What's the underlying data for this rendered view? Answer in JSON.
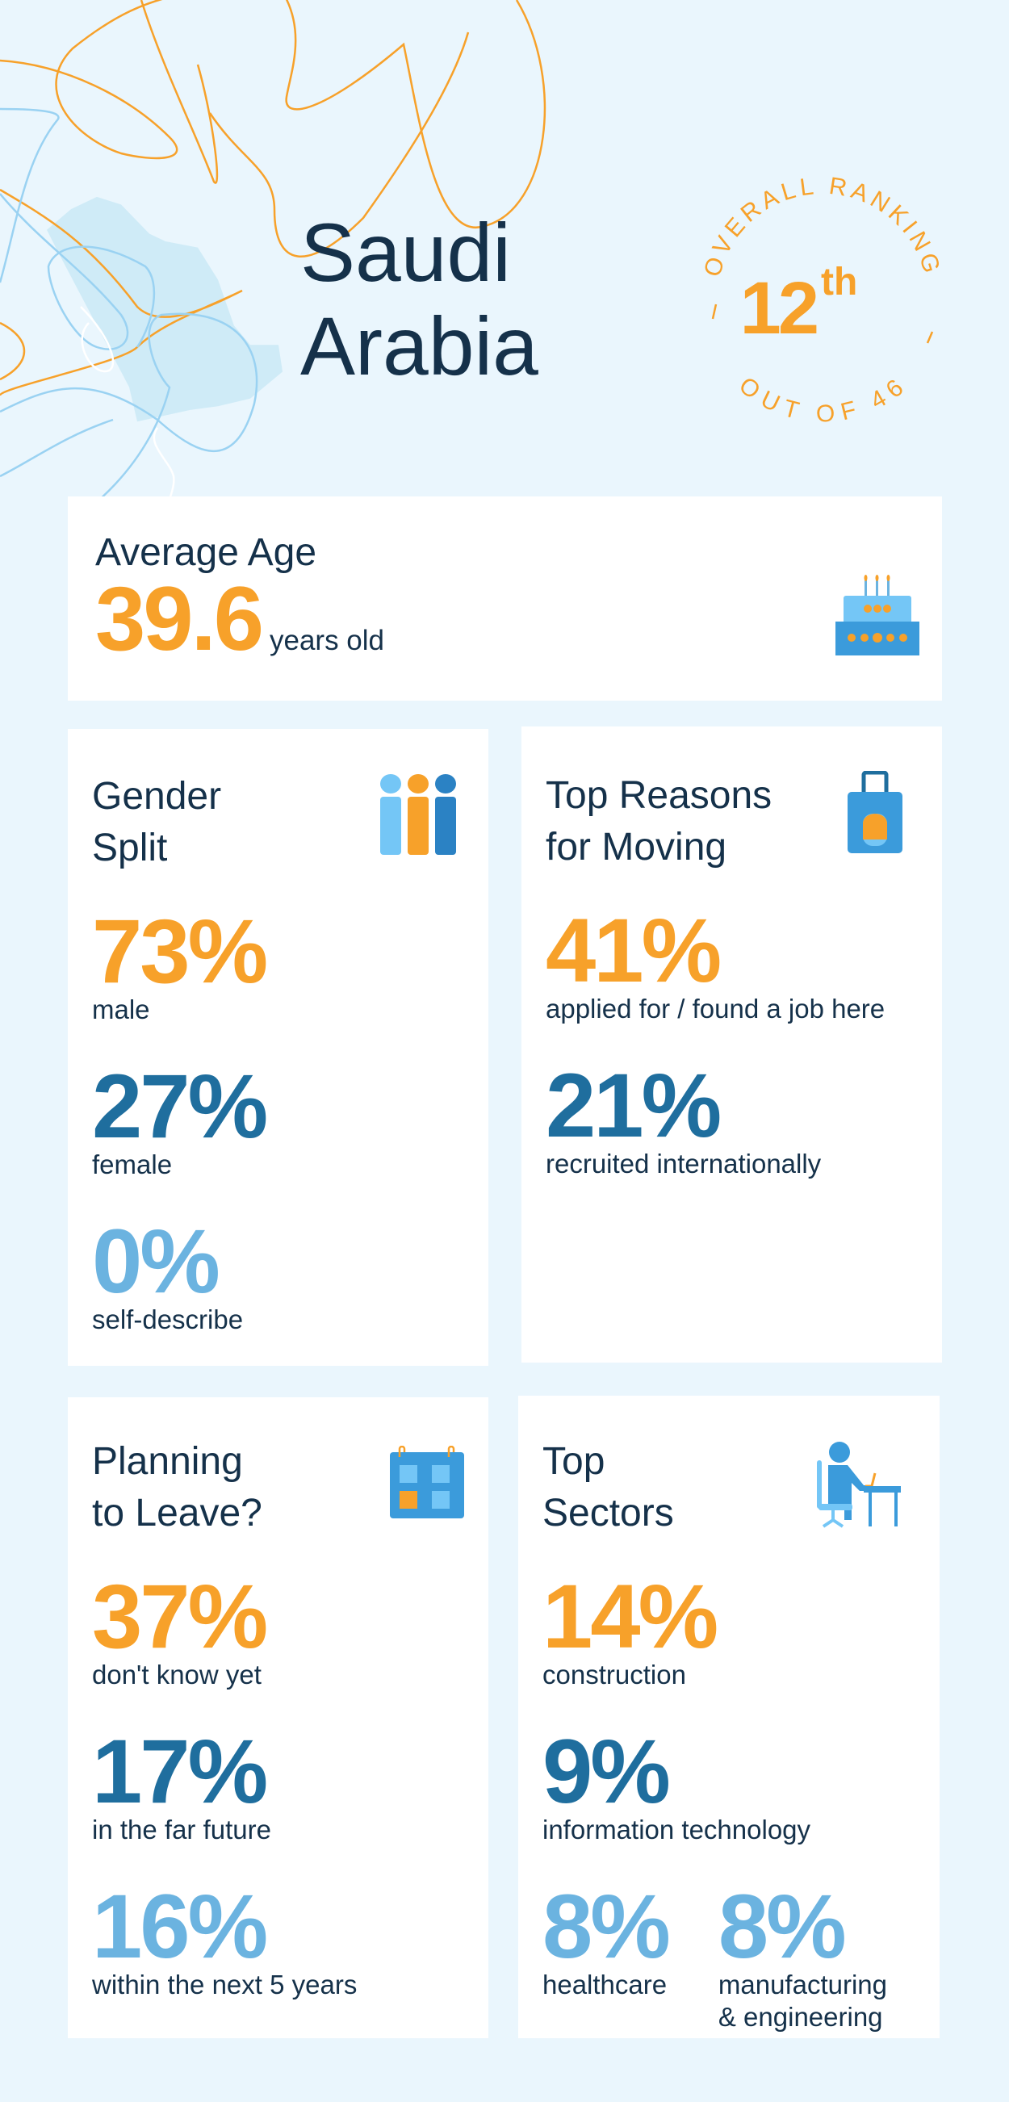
{
  "header": {
    "title_line1": "Saudi",
    "title_line2": "Arabia"
  },
  "ranking": {
    "top_text": "OVERALL RANKING",
    "bottom_text": "OUT OF 46",
    "rank": "12",
    "suffix": "th"
  },
  "average_age": {
    "title": "Average Age",
    "value": "39.6",
    "unit": "years old",
    "icon": "birthday-cake-icon"
  },
  "gender_split": {
    "title_line1": "Gender",
    "title_line2": "Split",
    "icon": "people-icon",
    "stats": [
      {
        "value": "73%",
        "label": "male"
      },
      {
        "value": "27%",
        "label": "female"
      },
      {
        "value": "0%",
        "label": "self-describe"
      }
    ]
  },
  "reasons": {
    "title_line1": "Top Reasons",
    "title_line2": "for Moving",
    "icon": "suitcase-icon",
    "stats": [
      {
        "value": "41%",
        "label": "applied for / found a job here"
      },
      {
        "value": "21%",
        "label": "recruited internationally"
      }
    ]
  },
  "planning": {
    "title_line1": "Planning",
    "title_line2": "to Leave?",
    "icon": "calendar-icon",
    "stats": [
      {
        "value": "37%",
        "label": "don't know yet"
      },
      {
        "value": "17%",
        "label": "in the far future"
      },
      {
        "value": "16%",
        "label": "within the next 5 years"
      }
    ]
  },
  "sectors": {
    "title_line1": "Top",
    "title_line2": "Sectors",
    "icon": "person-at-desk-icon",
    "stats": [
      {
        "value": "14%",
        "label": "construction"
      },
      {
        "value": "9%",
        "label": "information technology"
      },
      {
        "value": "8%",
        "label": "healthcare"
      },
      {
        "value": "8%",
        "label_line1": "manufacturing",
        "label_line2": "& engineering"
      }
    ]
  },
  "colors": {
    "orange": "#F7A12A",
    "dark_blue": "#1F6E9E",
    "light_blue": "#6BB3E0",
    "text": "#15314A",
    "background": "#EAF6FD"
  }
}
